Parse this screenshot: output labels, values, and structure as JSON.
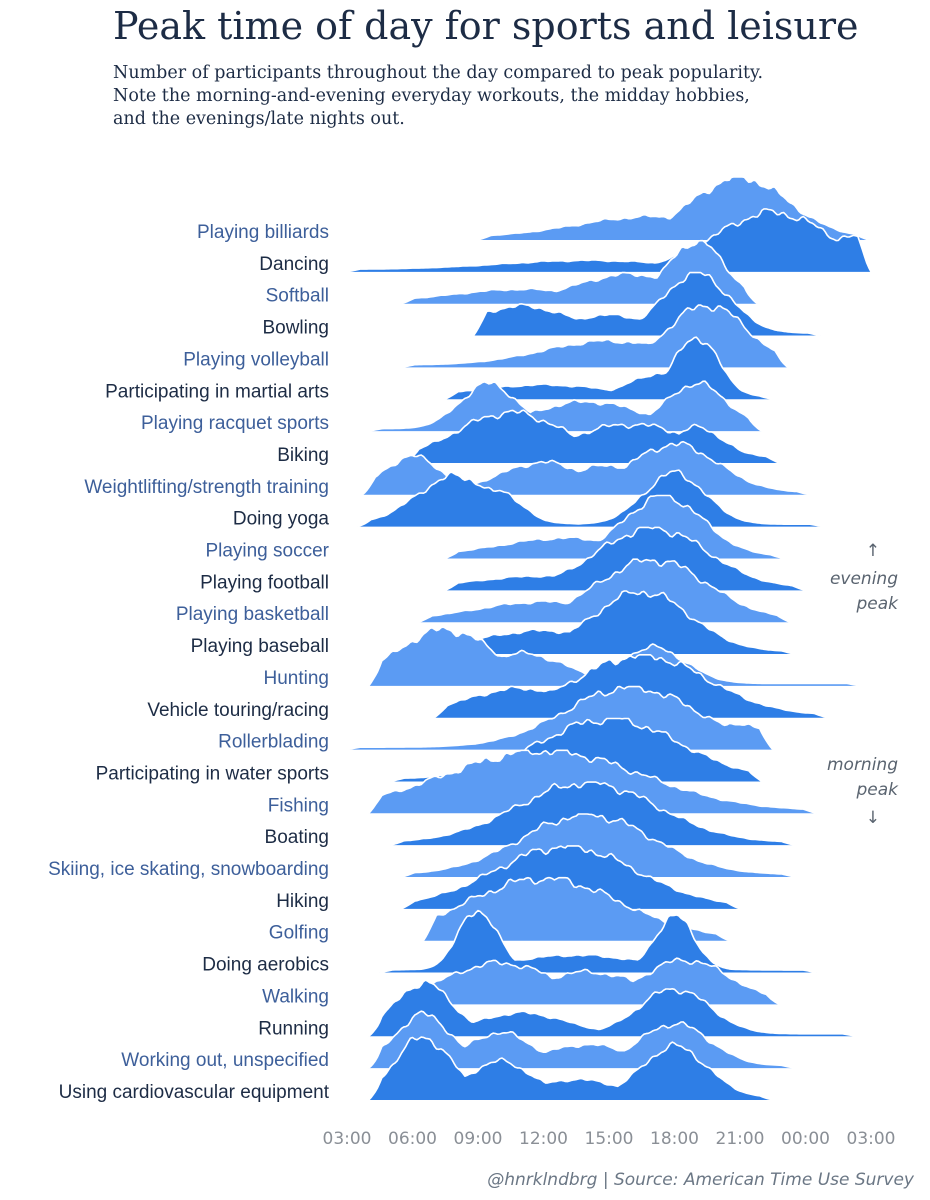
{
  "header": {
    "title": "Peak time of day for sports and leisure",
    "subtitle_lines": [
      "Number of participants throughout the day compared to peak popularity.",
      "Note the morning-and-evening everyday workouts, the midday hobbies,",
      "and the evenings/late nights out."
    ]
  },
  "annotations": {
    "evening_arrow": "↑",
    "evening_line1": "evening",
    "evening_line2": "peak",
    "morning_line1": "morning",
    "morning_line2": "peak",
    "morning_arrow": "↓"
  },
  "footer": {
    "credit": "@hnrklndbrg | Source: American Time Use Survey"
  },
  "colors": {
    "dark_blue": "#2e7ee6",
    "light_blue": "#5b9bf3",
    "outline": "#ffffff",
    "label_dark": "#1d2c45",
    "label_light": "#3d5f9a",
    "axis_text": "#8a8f96"
  },
  "chart_data": {
    "type": "ridgeline",
    "x_axis": {
      "unit": "time of day",
      "start_hour": 3,
      "end_hour": 27,
      "tick_labels": [
        "03:00",
        "06:00",
        "09:00",
        "12:00",
        "15:00",
        "18:00",
        "21:00",
        "00:00",
        "03:00"
      ]
    },
    "y_scale": "share of peak participation (0–1)",
    "series": [
      {
        "name": "Playing billiards",
        "start": 9,
        "end": 26.9,
        "peak_hour": 21,
        "peaks": [
          [
            21,
            1.0,
            2.2
          ],
          [
            17,
            0.35,
            3.5
          ]
        ]
      },
      {
        "name": "Dancing",
        "start": 3.0,
        "end": 27,
        "peak_hour": 23,
        "peaks": [
          [
            22.5,
            0.95,
            2.6
          ],
          [
            26,
            0.55,
            1.2
          ],
          [
            14,
            0.15,
            4
          ]
        ]
      },
      {
        "name": "Softball",
        "start": 5.5,
        "end": 21.8,
        "peak_hour": 19,
        "peaks": [
          [
            19,
            1.0,
            1.3
          ],
          [
            16,
            0.45,
            2.5
          ],
          [
            11,
            0.2,
            3
          ]
        ]
      },
      {
        "name": "Bowling",
        "start": 8.8,
        "end": 24.7,
        "peak_hour": 19,
        "peaks": [
          [
            19,
            1.0,
            1.5
          ],
          [
            11,
            0.45,
            2.2
          ],
          [
            15,
            0.3,
            2
          ]
        ]
      },
      {
        "name": "Playing volleyball",
        "start": 5.5,
        "end": 23.2,
        "peak_hour": 19.5,
        "peaks": [
          [
            19.5,
            1.0,
            1.8
          ],
          [
            15,
            0.4,
            3
          ]
        ]
      },
      {
        "name": "Participating in martial arts",
        "start": 7.5,
        "end": 22.5,
        "peak_hour": 19,
        "peaks": [
          [
            19,
            1.0,
            1.0
          ],
          [
            17.5,
            0.4,
            1.5
          ],
          [
            12,
            0.2,
            3
          ]
        ]
      },
      {
        "name": "Playing racquet sports",
        "start": 4.0,
        "end": 22.0,
        "peak_hour": 19,
        "peaks": [
          [
            9.5,
            0.75,
            1.3
          ],
          [
            19,
            0.75,
            1.4
          ],
          [
            14,
            0.45,
            2.5
          ]
        ]
      },
      {
        "name": "Biking",
        "start": 5.7,
        "end": 22.8,
        "peak_hour": 10.5,
        "peaks": [
          [
            10.5,
            0.8,
            2.5
          ],
          [
            16,
            0.6,
            3
          ],
          [
            19,
            0.55,
            1.3
          ]
        ]
      },
      {
        "name": "Weightlifting/strength training",
        "start": 3.7,
        "end": 24.2,
        "peak_hour": 18,
        "peaks": [
          [
            6,
            0.6,
            1.3
          ],
          [
            12,
            0.5,
            2
          ],
          [
            18,
            0.8,
            2
          ],
          [
            15,
            0.45,
            2
          ]
        ]
      },
      {
        "name": "Doing yoga",
        "start": 3.5,
        "end": 24.8,
        "peak_hour": 18,
        "peaks": [
          [
            8,
            0.8,
            1.8
          ],
          [
            10,
            0.55,
            1
          ],
          [
            18,
            0.85,
            1.4
          ]
        ]
      },
      {
        "name": "Playing soccer",
        "start": 7.5,
        "end": 23.0,
        "peak_hour": 17.5,
        "peaks": [
          [
            17.5,
            1.0,
            1.8
          ],
          [
            13,
            0.3,
            3
          ]
        ]
      },
      {
        "name": "Playing football",
        "start": 7.5,
        "end": 24.0,
        "peak_hour": 17,
        "peaks": [
          [
            17,
            1.0,
            2.5
          ],
          [
            12,
            0.2,
            3
          ]
        ]
      },
      {
        "name": "Playing basketball",
        "start": 6.3,
        "end": 23.3,
        "peak_hour": 17,
        "peaks": [
          [
            17,
            1.0,
            2.5
          ],
          [
            12,
            0.3,
            3
          ]
        ]
      },
      {
        "name": "Playing baseball",
        "start": 6.0,
        "end": 23.5,
        "peak_hour": 16.5,
        "peaks": [
          [
            16.5,
            1.0,
            2.2
          ],
          [
            12,
            0.35,
            3
          ]
        ]
      },
      {
        "name": "Hunting",
        "start": 4.0,
        "end": 26.5,
        "peak_hour": 7.5,
        "peaks": [
          [
            7.5,
            0.9,
            2.2
          ],
          [
            11,
            0.5,
            2
          ],
          [
            17,
            0.6,
            1.5
          ]
        ]
      },
      {
        "name": "Vehicle touring/racing",
        "start": 7.0,
        "end": 25.0,
        "peak_hour": 16.5,
        "peaks": [
          [
            16.5,
            1.0,
            3
          ],
          [
            11,
            0.45,
            2.5
          ]
        ]
      },
      {
        "name": "Rollerblading",
        "start": 3.0,
        "end": 22.5,
        "peak_hour": 16,
        "peaks": [
          [
            16,
            1.0,
            3
          ],
          [
            21,
            0.4,
            1.2
          ]
        ]
      },
      {
        "name": "Participating in water sports",
        "start": 5.0,
        "end": 22.0,
        "peak_hour": 15,
        "peaks": [
          [
            15,
            1.0,
            3.2
          ]
        ]
      },
      {
        "name": "Fishing",
        "start": 4.0,
        "end": 24.5,
        "peak_hour": 12,
        "peaks": [
          [
            12,
            1.0,
            4.5
          ]
        ]
      },
      {
        "name": "Boating",
        "start": 5.0,
        "end": 23.5,
        "peak_hour": 14,
        "peaks": [
          [
            14,
            1.0,
            3.2
          ]
        ]
      },
      {
        "name": "Skiing, ice skating, snowboarding",
        "start": 5.5,
        "end": 23.5,
        "peak_hour": 14,
        "peaks": [
          [
            14,
            1.0,
            3
          ]
        ]
      },
      {
        "name": "Hiking",
        "start": 5.5,
        "end": 21.0,
        "peak_hour": 13,
        "peaks": [
          [
            13,
            1.0,
            3.2
          ]
        ]
      },
      {
        "name": "Golfing",
        "start": 6.5,
        "end": 20.5,
        "peak_hour": 12,
        "peaks": [
          [
            12,
            1.0,
            3.5
          ]
        ]
      },
      {
        "name": "Doing aerobics",
        "start": 4.5,
        "end": 24.5,
        "peak_hour": 9,
        "peaks": [
          [
            9,
            1.0,
            0.9
          ],
          [
            18,
            0.9,
            0.9
          ],
          [
            13.5,
            0.25,
            3
          ]
        ]
      },
      {
        "name": "Walking",
        "start": 5.0,
        "end": 22.8,
        "peak_hour": 18.5,
        "peaks": [
          [
            10,
            0.65,
            2.5
          ],
          [
            18.5,
            0.7,
            2
          ],
          [
            14,
            0.5,
            2.5
          ]
        ]
      },
      {
        "name": "Running",
        "start": 4.0,
        "end": 26.3,
        "peak_hour": 6.5,
        "peaks": [
          [
            6.5,
            0.85,
            1.3
          ],
          [
            18,
            0.75,
            1.6
          ],
          [
            11,
            0.35,
            2
          ]
        ]
      },
      {
        "name": "Working out, unspecified",
        "start": 4.0,
        "end": 23.5,
        "peak_hour": 6.5,
        "peaks": [
          [
            6.5,
            0.85,
            1.3
          ],
          [
            10,
            0.55,
            1.5
          ],
          [
            18,
            0.7,
            1.6
          ],
          [
            14,
            0.35,
            2
          ]
        ]
      },
      {
        "name": "Using cardiovascular equipment",
        "start": 4.0,
        "end": 22.5,
        "peak_hour": 6.5,
        "peaks": [
          [
            6.5,
            1.0,
            1.3
          ],
          [
            10,
            0.6,
            1.5
          ],
          [
            18,
            0.85,
            1.5
          ],
          [
            13.5,
            0.3,
            2
          ]
        ]
      }
    ]
  }
}
